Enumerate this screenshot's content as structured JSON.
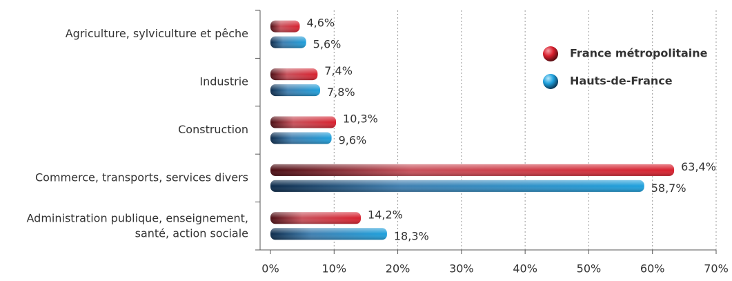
{
  "chart_data": {
    "type": "bar",
    "orientation": "horizontal",
    "categories": [
      "Agriculture, sylviculture et pêche",
      "Industrie",
      "Construction",
      "Commerce, transports, services divers",
      "Administration publique, enseignement,\nsanté, action sociale"
    ],
    "series": [
      {
        "name": "France métropolitaine",
        "color": "#d8202e",
        "values": [
          4.6,
          7.4,
          10.3,
          63.4,
          14.2
        ],
        "value_labels": [
          "4,6%",
          "7,4%",
          "10,3%",
          "63,4%",
          "14,2%"
        ]
      },
      {
        "name": "Hauts-de-France",
        "color": "#1ea0dc",
        "values": [
          5.6,
          7.8,
          9.6,
          58.7,
          18.3
        ],
        "value_labels": [
          "5,6%",
          "7,8%",
          "9,6%",
          "58,7%",
          "18,3%"
        ]
      }
    ],
    "xlim": [
      0,
      70
    ],
    "xticks": [
      {
        "value": 0,
        "label": "0%"
      },
      {
        "value": 10,
        "label": "10%"
      },
      {
        "value": 20,
        "label": "20%"
      },
      {
        "value": 30,
        "label": "30%"
      },
      {
        "value": 40,
        "label": "40%"
      },
      {
        "value": 50,
        "label": "50%"
      },
      {
        "value": 60,
        "label": "60%"
      },
      {
        "value": 70,
        "label": "70%"
      }
    ],
    "grid": true,
    "legend": "upper right"
  }
}
